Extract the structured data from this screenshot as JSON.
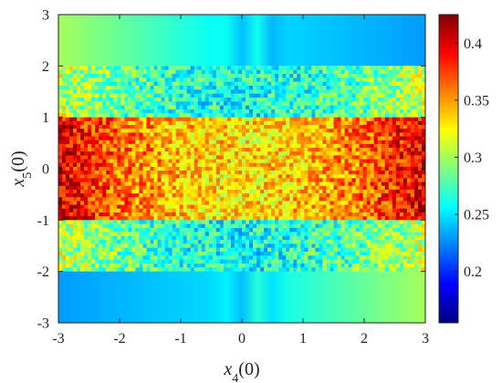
{
  "chart_data": {
    "type": "heatmap",
    "title": "",
    "xlabel": "x_4(0)",
    "ylabel": "x_5(0)",
    "xlabel_parts": {
      "var": "x",
      "sub": "4",
      "arg": "(0)"
    },
    "ylabel_parts": {
      "var": "x",
      "sub": "5",
      "arg": "(0)"
    },
    "xlim": [
      -3,
      3
    ],
    "ylim": [
      -3,
      3
    ],
    "x_ticks": [
      "-3",
      "-2",
      "-1",
      "0",
      "1",
      "2",
      "3"
    ],
    "y_ticks": [
      "-3",
      "-2",
      "-1",
      "0",
      "1",
      "2",
      "3"
    ],
    "colormap": "jet",
    "clim": [
      0.155,
      0.425
    ],
    "colorbar_ticks": [
      "0.2",
      "0.25",
      "0.3",
      "0.35",
      "0.4"
    ],
    "colorbar_tick_values": [
      0.2,
      0.25,
      0.3,
      0.35,
      0.4
    ],
    "bands": [
      {
        "y_range": [
          2,
          3
        ],
        "pattern": "smooth",
        "value_left": 0.3,
        "value_center": 0.25,
        "value_right": 0.23
      },
      {
        "y_range": [
          1,
          2
        ],
        "pattern": "noisy",
        "value_edge": 0.31,
        "value_center": 0.26
      },
      {
        "y_range": [
          -1,
          1
        ],
        "pattern": "noisy",
        "value_edge": 0.4,
        "value_center": 0.33
      },
      {
        "y_range": [
          -2,
          -1
        ],
        "pattern": "noisy",
        "value_edge": 0.31,
        "value_center": 0.26
      },
      {
        "y_range": [
          -3,
          -2
        ],
        "pattern": "smooth",
        "value_left": 0.23,
        "value_center": 0.25,
        "value_right": 0.3
      }
    ]
  }
}
